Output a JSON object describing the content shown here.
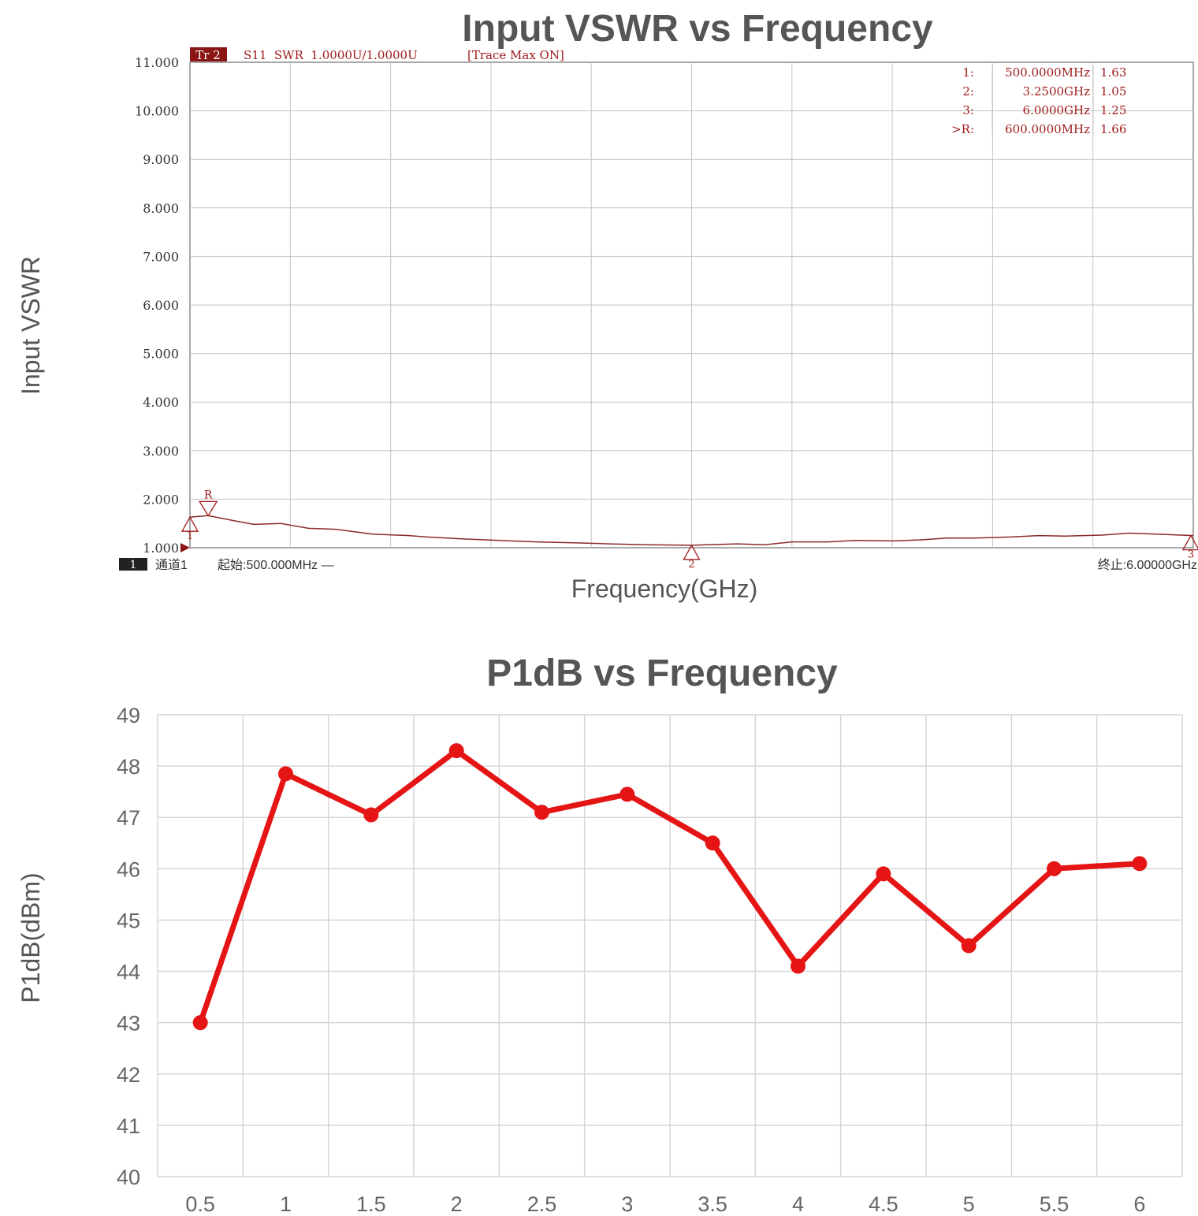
{
  "page_colors": {
    "title": "#555555",
    "analyzer_trace": "#8b2a2a",
    "analyzer_grid": "#c4c4c4",
    "analyzer_frame": "#8c8c8c",
    "analyzer_text": "#333333",
    "analyzer_marker_text": "#a01a1a",
    "badge_bg": "#8b1414",
    "badge_text": "#ffffff",
    "p1db_line": "#e51515",
    "p1db_grid": "#d5d5d5",
    "p1db_tick": "#666666"
  },
  "chart_data": [
    {
      "type": "line",
      "title": "Input VSWR vs Frequency",
      "xlabel": "Frequency(GHz)",
      "ylabel": "Input VSWR",
      "ylim": [
        1.0,
        11.0
      ],
      "xlim": [
        0.5,
        6.0
      ],
      "x_unit": "GHz",
      "yticks": [
        "1.000",
        "2.000",
        "3.000",
        "4.000",
        "5.000",
        "6.000",
        "7.000",
        "8.000",
        "9.000",
        "10.000",
        "11.000"
      ],
      "grid": true,
      "header": {
        "badge": "Tr 2",
        "trace_info": "S11  SWR  1.0000U/1.0000U",
        "trace_max": "[Trace Max ON]"
      },
      "marker_table": [
        {
          "label": "1:",
          "freq": "500.0000MHz",
          "value": "1.63"
        },
        {
          "label": "2:",
          "freq": "3.2500GHz",
          "value": "1.05"
        },
        {
          "label": "3:",
          "freq": "6.0000GHz",
          "value": "1.25"
        },
        {
          "label": ">R:",
          "freq": "600.0000MHz",
          "value": "1.66"
        }
      ],
      "markers": [
        {
          "id": "1",
          "x": 0.5,
          "y": 1.63
        },
        {
          "id": "R",
          "x": 0.6,
          "y": 1.66
        },
        {
          "id": "2",
          "x": 3.25,
          "y": 1.05
        },
        {
          "id": "3",
          "x": 6.0,
          "y": 1.25
        }
      ],
      "footer": {
        "channel_badge": "1",
        "channel_label": "通道1",
        "start": "起始:500.000MHz —",
        "stop": "终止:6.00000GHz"
      },
      "series": [
        {
          "x": [
            0.5,
            0.6,
            0.75,
            0.85,
            1.0,
            1.15,
            1.3,
            1.5,
            1.7,
            1.8,
            2.0,
            2.2,
            2.4,
            2.6,
            2.8,
            3.0,
            3.25,
            3.5,
            3.65,
            3.8,
            4.0,
            4.15,
            4.35,
            4.5,
            4.65,
            4.8,
            5.0,
            5.15,
            5.3,
            5.5,
            5.65,
            5.8,
            6.0
          ],
          "y": [
            1.63,
            1.66,
            1.55,
            1.48,
            1.5,
            1.4,
            1.38,
            1.28,
            1.25,
            1.22,
            1.18,
            1.15,
            1.12,
            1.1,
            1.08,
            1.06,
            1.05,
            1.08,
            1.06,
            1.12,
            1.12,
            1.15,
            1.14,
            1.16,
            1.2,
            1.2,
            1.22,
            1.25,
            1.24,
            1.26,
            1.3,
            1.28,
            1.25
          ]
        }
      ]
    },
    {
      "type": "line",
      "title": "P1dB vs Frequency",
      "xlabel": "",
      "ylabel": "P1dB(dBm)",
      "ylim": [
        40,
        49
      ],
      "yticks": [
        40,
        41,
        42,
        43,
        44,
        45,
        46,
        47,
        48,
        49
      ],
      "categories": [
        "0.5",
        "1",
        "1.5",
        "2",
        "2.5",
        "3",
        "3.5",
        "4",
        "4.5",
        "5",
        "5.5",
        "6"
      ],
      "grid": true,
      "series": [
        {
          "values": [
            43.0,
            47.85,
            47.05,
            48.3,
            47.1,
            47.45,
            46.5,
            44.1,
            45.9,
            44.5,
            46.0,
            46.1
          ]
        }
      ]
    }
  ]
}
